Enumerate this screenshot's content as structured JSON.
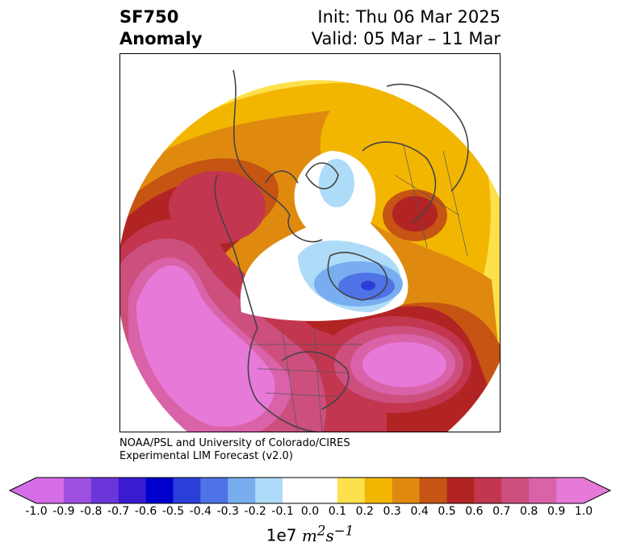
{
  "header": {
    "variable": "SF750",
    "subtitle": "Anomaly",
    "init": "Init: Thu 06 Mar 2025",
    "valid": "Valid: 05 Mar – 11 Mar"
  },
  "credit": {
    "line1": "NOAA/PSL and University of Colorado/CIRES",
    "line2": "Experimental LIM Forecast (v2.0)"
  },
  "colorbar": {
    "levels": [
      "-1.0",
      "-0.9",
      "-0.8",
      "-0.7",
      "-0.6",
      "-0.5",
      "-0.4",
      "-0.3",
      "-0.2",
      "-0.1",
      "0.0",
      "0.1",
      "0.2",
      "0.3",
      "0.4",
      "0.5",
      "0.6",
      "0.7",
      "0.8",
      "0.9",
      "1.0"
    ],
    "colors": [
      "#d56ee6",
      "#9d4fe0",
      "#6a36d9",
      "#3a1bd0",
      "#0000cc",
      "#2a3fd8",
      "#4f72e6",
      "#78aef0",
      "#aedcf8",
      "#ffffff",
      "#ffffff",
      "#fde14c",
      "#f3b600",
      "#df8a0f",
      "#c65413",
      "#b22424",
      "#c23650",
      "#cc4f7e",
      "#d962a8",
      "#e779d8"
    ],
    "units_base": "1e7"
  },
  "map_legend_colors": {
    "pos_0_1": "#fde14c",
    "pos_0_2": "#f3b600",
    "pos_0_3": "#df8a0f",
    "pos_0_4": "#c65413",
    "pos_0_5": "#b22424",
    "pos_0_6": "#c23650",
    "pos_0_7": "#cc4f7e",
    "pos_0_8": "#d962a8",
    "pos_0_9": "#e779d8",
    "neg_0_1": "#aedcf8",
    "neg_0_2": "#78aef0",
    "neg_0_3": "#4f72e6",
    "neg_0_5": "#2a3fd8"
  }
}
